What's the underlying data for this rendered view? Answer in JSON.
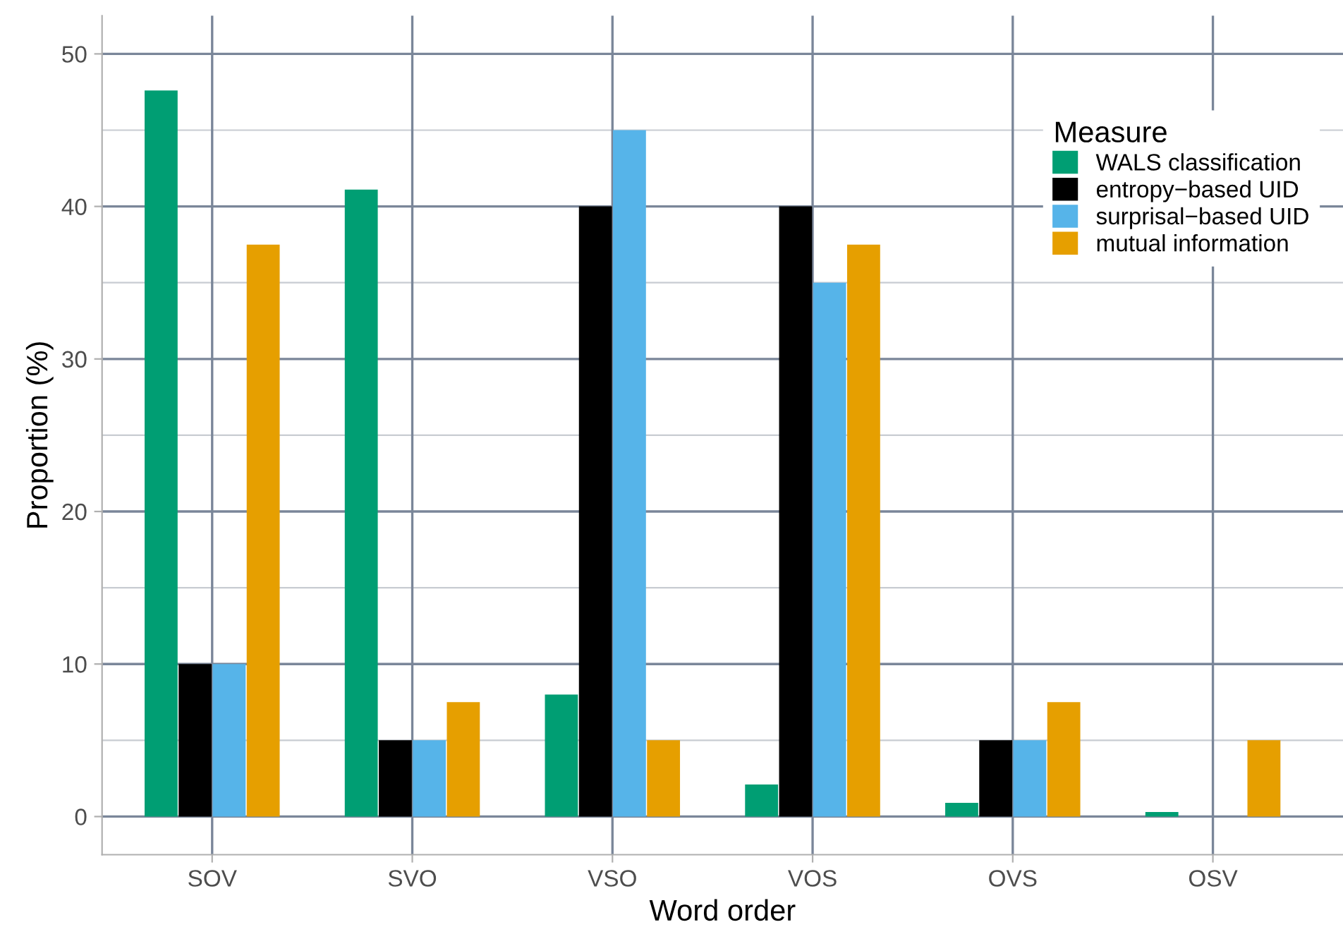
{
  "chart_data": {
    "type": "bar",
    "xlabel": "Word order",
    "ylabel": "Proportion (%)",
    "legend_title": "Measure",
    "categories": [
      "SOV",
      "SVO",
      "VSO",
      "VOS",
      "OVS",
      "OSV"
    ],
    "series": [
      {
        "name": "WALS classification",
        "color": "#009e73",
        "values": [
          47.6,
          41.1,
          8,
          2.1,
          0.9,
          0.3
        ]
      },
      {
        "name": "entropy−based UID",
        "color": "#000000",
        "values": [
          10,
          5,
          40,
          40,
          5,
          0
        ]
      },
      {
        "name": "surprisal−based UID",
        "color": "#56b4e9",
        "values": [
          10,
          5,
          45,
          35,
          5,
          0
        ]
      },
      {
        "name": "mutual information",
        "color": "#e69f00",
        "values": [
          37.5,
          7.5,
          5,
          37.5,
          7.5,
          5
        ]
      }
    ],
    "ylim": [
      -2.5,
      52.5
    ],
    "yticks": [
      0,
      10,
      20,
      30,
      40,
      50
    ],
    "grid": true,
    "legend": "top right"
  }
}
